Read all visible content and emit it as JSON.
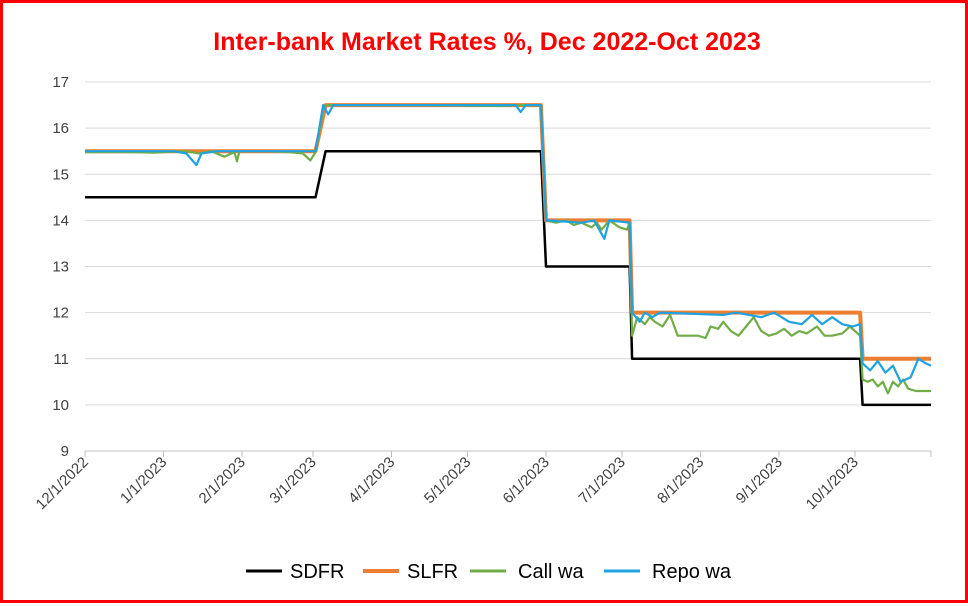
{
  "chart_data": {
    "type": "line",
    "title": "Inter-bank Market Rates %, Dec 2022-Oct 2023",
    "xlabel": "",
    "ylabel": "",
    "ylim": [
      9,
      17
    ],
    "yticks": [
      9,
      10,
      11,
      12,
      13,
      14,
      15,
      16,
      17
    ],
    "x_tick_labels": [
      "12/1/2022",
      "1/1/2023",
      "2/1/2023",
      "3/1/2023",
      "4/1/2023",
      "5/1/2023",
      "6/1/2023",
      "7/1/2023",
      "8/1/2023",
      "9/1/2023",
      "10/1/2023"
    ],
    "xlim": [
      "2022-12-01",
      "2023-10-31"
    ],
    "grid": "horizontal",
    "legend_position": "bottom",
    "series": [
      {
        "name": "SDFR",
        "color": "#000000",
        "points": [
          [
            "2022-12-01",
            14.5
          ],
          [
            "2023-03-02",
            14.5
          ],
          [
            "2023-03-06",
            15.5
          ],
          [
            "2023-05-30",
            15.5
          ],
          [
            "2023-06-01",
            13.0
          ],
          [
            "2023-07-04",
            13.0
          ],
          [
            "2023-07-05",
            11.0
          ],
          [
            "2023-10-03",
            11.0
          ],
          [
            "2023-10-04",
            10.0
          ],
          [
            "2023-10-31",
            10.0
          ]
        ]
      },
      {
        "name": "SLFR",
        "color": "#ed7d31",
        "points": [
          [
            "2022-12-01",
            15.5
          ],
          [
            "2023-03-02",
            15.5
          ],
          [
            "2023-03-06",
            16.5
          ],
          [
            "2023-05-30",
            16.5
          ],
          [
            "2023-06-01",
            14.0
          ],
          [
            "2023-07-04",
            14.0
          ],
          [
            "2023-07-05",
            12.0
          ],
          [
            "2023-10-03",
            12.0
          ],
          [
            "2023-10-04",
            11.0
          ],
          [
            "2023-10-31",
            11.0
          ]
        ]
      },
      {
        "name": "Call wa",
        "color": "#70ad47",
        "points": [
          [
            "2022-12-01",
            15.48
          ],
          [
            "2022-12-20",
            15.48
          ],
          [
            "2022-12-28",
            15.47
          ],
          [
            "2023-01-10",
            15.5
          ],
          [
            "2023-01-15",
            15.45
          ],
          [
            "2023-01-20",
            15.5
          ],
          [
            "2023-01-22",
            15.45
          ],
          [
            "2023-01-25",
            15.38
          ],
          [
            "2023-01-29",
            15.48
          ],
          [
            "2023-01-30",
            15.28
          ],
          [
            "2023-01-31",
            15.5
          ],
          [
            "2023-02-10",
            15.5
          ],
          [
            "2023-02-20",
            15.48
          ],
          [
            "2023-02-25",
            15.45
          ],
          [
            "2023-02-28",
            15.3
          ],
          [
            "2023-03-02",
            15.48
          ],
          [
            "2023-03-05",
            16.4
          ],
          [
            "2023-03-06",
            16.5
          ],
          [
            "2023-04-15",
            16.5
          ],
          [
            "2023-05-15",
            16.48
          ],
          [
            "2023-05-20",
            16.5
          ],
          [
            "2023-05-30",
            16.5
          ],
          [
            "2023-06-01",
            14.0
          ],
          [
            "2023-06-05",
            13.95
          ],
          [
            "2023-06-09",
            14.0
          ],
          [
            "2023-06-12",
            13.9
          ],
          [
            "2023-06-15",
            13.95
          ],
          [
            "2023-06-19",
            13.85
          ],
          [
            "2023-06-21",
            13.95
          ],
          [
            "2023-06-23",
            13.8
          ],
          [
            "2023-06-26",
            14.0
          ],
          [
            "2023-06-30",
            13.85
          ],
          [
            "2023-07-03",
            13.8
          ],
          [
            "2023-07-04",
            13.95
          ],
          [
            "2023-07-05",
            11.5
          ],
          [
            "2023-07-07",
            11.9
          ],
          [
            "2023-07-10",
            11.75
          ],
          [
            "2023-07-12",
            11.9
          ],
          [
            "2023-07-14",
            11.8
          ],
          [
            "2023-07-17",
            11.7
          ],
          [
            "2023-07-20",
            11.95
          ],
          [
            "2023-07-23",
            11.5
          ],
          [
            "2023-07-26",
            11.5
          ],
          [
            "2023-07-31",
            11.5
          ],
          [
            "2023-08-03",
            11.45
          ],
          [
            "2023-08-05",
            11.7
          ],
          [
            "2023-08-08",
            11.65
          ],
          [
            "2023-08-10",
            11.8
          ],
          [
            "2023-08-13",
            11.6
          ],
          [
            "2023-08-16",
            11.5
          ],
          [
            "2023-08-19",
            11.7
          ],
          [
            "2023-08-22",
            11.9
          ],
          [
            "2023-08-25",
            11.6
          ],
          [
            "2023-08-28",
            11.5
          ],
          [
            "2023-08-31",
            11.55
          ],
          [
            "2023-09-03",
            11.65
          ],
          [
            "2023-09-06",
            11.5
          ],
          [
            "2023-09-09",
            11.6
          ],
          [
            "2023-09-12",
            11.55
          ],
          [
            "2023-09-16",
            11.7
          ],
          [
            "2023-09-19",
            11.5
          ],
          [
            "2023-09-22",
            11.5
          ],
          [
            "2023-09-26",
            11.55
          ],
          [
            "2023-09-29",
            11.7
          ],
          [
            "2023-10-03",
            11.5
          ],
          [
            "2023-10-04",
            10.55
          ],
          [
            "2023-10-06",
            10.5
          ],
          [
            "2023-10-08",
            10.55
          ],
          [
            "2023-10-10",
            10.4
          ],
          [
            "2023-10-12",
            10.5
          ],
          [
            "2023-10-14",
            10.25
          ],
          [
            "2023-10-16",
            10.5
          ],
          [
            "2023-10-18",
            10.4
          ],
          [
            "2023-10-20",
            10.55
          ],
          [
            "2023-10-22",
            10.35
          ],
          [
            "2023-10-25",
            10.3
          ],
          [
            "2023-10-28",
            10.3
          ],
          [
            "2023-10-31",
            10.3
          ]
        ]
      },
      {
        "name": "Repo wa",
        "color": "#1fa2e0",
        "points": [
          [
            "2022-12-01",
            15.5
          ],
          [
            "2023-01-05",
            15.5
          ],
          [
            "2023-01-10",
            15.45
          ],
          [
            "2023-01-14",
            15.2
          ],
          [
            "2023-01-16",
            15.45
          ],
          [
            "2023-01-22",
            15.5
          ],
          [
            "2023-02-15",
            15.5
          ],
          [
            "2023-03-02",
            15.5
          ],
          [
            "2023-03-05",
            16.5
          ],
          [
            "2023-03-07",
            16.3
          ],
          [
            "2023-03-09",
            16.5
          ],
          [
            "2023-04-15",
            16.5
          ],
          [
            "2023-05-20",
            16.5
          ],
          [
            "2023-05-22",
            16.35
          ],
          [
            "2023-05-24",
            16.5
          ],
          [
            "2023-05-30",
            16.5
          ],
          [
            "2023-06-01",
            14.0
          ],
          [
            "2023-06-15",
            13.95
          ],
          [
            "2023-06-20",
            14.0
          ],
          [
            "2023-06-24",
            13.6
          ],
          [
            "2023-06-26",
            14.0
          ],
          [
            "2023-07-04",
            13.95
          ],
          [
            "2023-07-05",
            12.0
          ],
          [
            "2023-07-08",
            11.8
          ],
          [
            "2023-07-10",
            12.0
          ],
          [
            "2023-07-13",
            11.9
          ],
          [
            "2023-07-16",
            12.0
          ],
          [
            "2023-08-10",
            11.95
          ],
          [
            "2023-08-15",
            12.0
          ],
          [
            "2023-08-25",
            11.9
          ],
          [
            "2023-08-30",
            12.0
          ],
          [
            "2023-09-05",
            11.8
          ],
          [
            "2023-09-10",
            11.75
          ],
          [
            "2023-09-14",
            11.95
          ],
          [
            "2023-09-18",
            11.75
          ],
          [
            "2023-09-22",
            11.9
          ],
          [
            "2023-09-26",
            11.75
          ],
          [
            "2023-09-30",
            11.7
          ],
          [
            "2023-10-03",
            11.75
          ],
          [
            "2023-10-04",
            10.9
          ],
          [
            "2023-10-07",
            10.75
          ],
          [
            "2023-10-10",
            10.95
          ],
          [
            "2023-10-13",
            10.7
          ],
          [
            "2023-10-16",
            10.85
          ],
          [
            "2023-10-19",
            10.5
          ],
          [
            "2023-10-23",
            10.6
          ],
          [
            "2023-10-26",
            11.0
          ],
          [
            "2023-10-29",
            10.9
          ],
          [
            "2023-10-31",
            10.85
          ]
        ]
      }
    ]
  }
}
